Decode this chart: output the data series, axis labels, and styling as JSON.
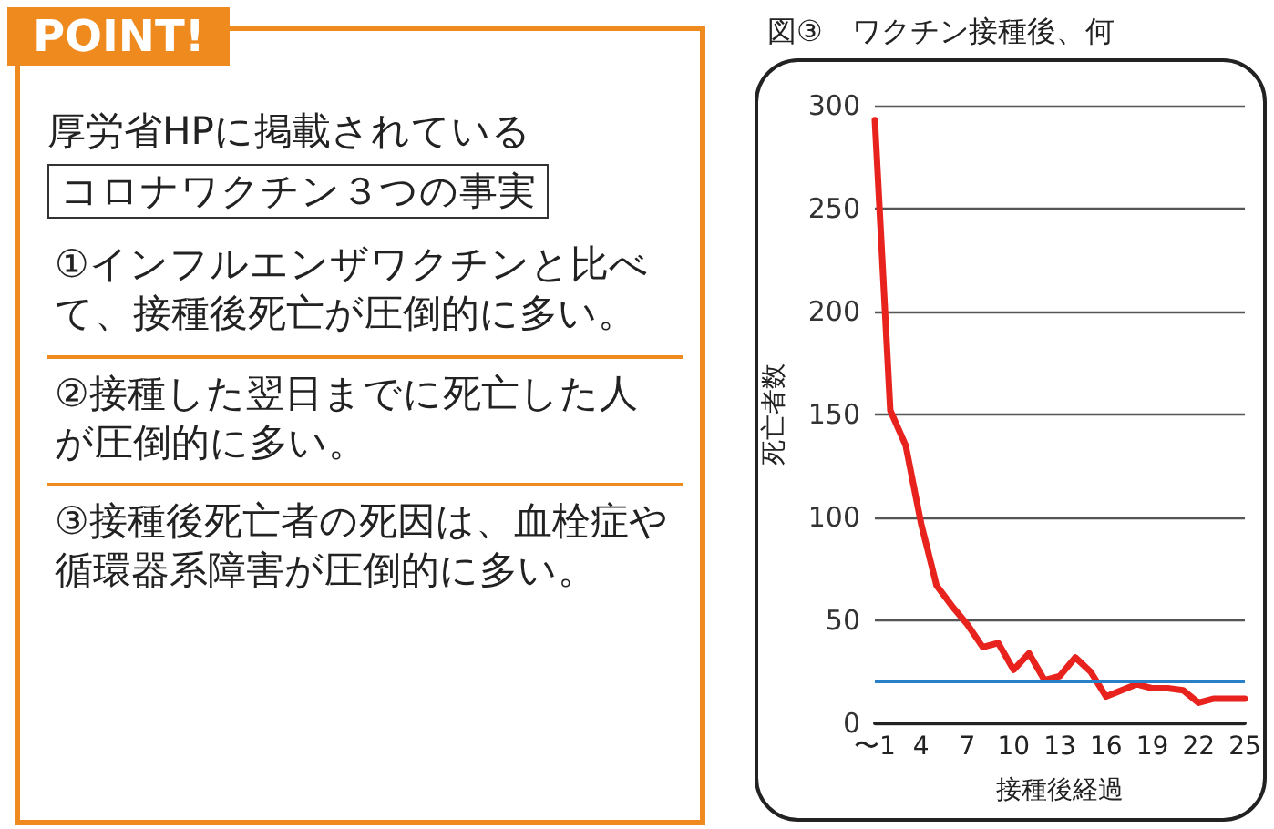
{
  "chart_data": [
    {
      "type": "other",
      "title": "POINT!",
      "subtitle": "厚労省HPに掲載されている",
      "annotations": [
        "コロナワクチン３つの事実",
        "①インフルエンザワクチンと比べて、接種後死亡が圧倒的に多い。",
        "②接種した翌日までに死亡した人が圧倒的に多い。",
        "③接種後死亡者の死因は、血栓症や循環器系障害が圧倒的に多い。"
      ]
    },
    {
      "type": "line",
      "title": "図③　ワクチン接種後、何",
      "xlabel": "接種後経過",
      "ylabel": "死亡者数",
      "categories": [
        "〜1",
        null,
        null,
        "4",
        null,
        null,
        "7",
        null,
        null,
        "10",
        null,
        null,
        "13",
        null,
        null,
        "16",
        null,
        null,
        "19",
        null,
        null,
        "22",
        null,
        null,
        "25"
      ],
      "series": [
        {
          "color": "#e8231e",
          "values": [
            293,
            152,
            135,
            97,
            67,
            57,
            48,
            37,
            39,
            26,
            34,
            21,
            23,
            32,
            25,
            13,
            16,
            19,
            17,
            17,
            16,
            10,
            12,
            12,
            12
          ]
        }
      ],
      "ylim": [
        0,
        300
      ],
      "yticks": [
        0,
        50,
        100,
        150,
        200,
        250,
        300
      ],
      "grid": "y",
      "marker": "none",
      "line_style": "solid",
      "ref_lines": [
        {
          "axis": "y",
          "value": 21,
          "color": "#2a7fc9"
        }
      ]
    }
  ]
}
